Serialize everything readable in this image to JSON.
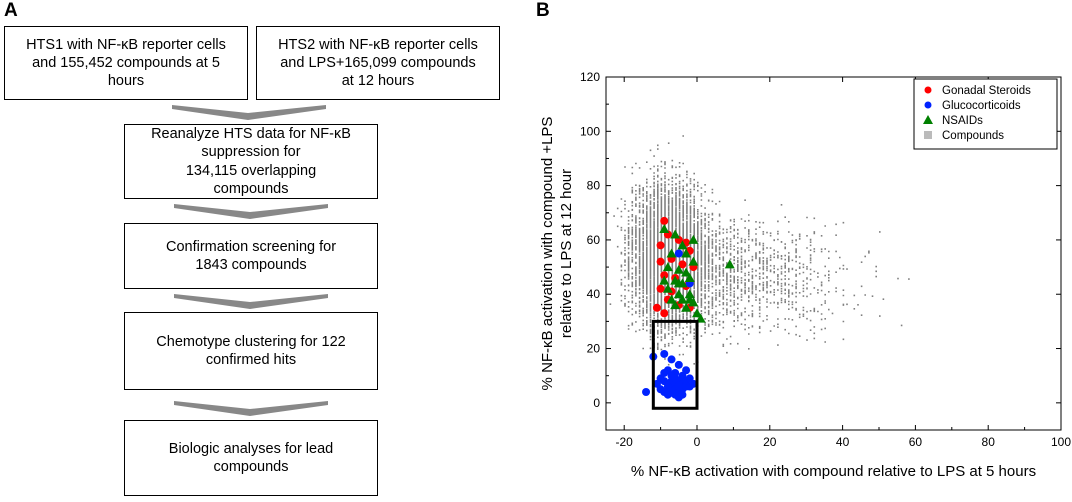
{
  "panel_a": {
    "label": "A",
    "boxes": [
      "HTS1 with NF-κB reporter cells\nand 155,452 compounds at 5\nhours",
      "HTS2 with NF-κB reporter cells\nand LPS+165,099 compounds\nat 12 hours",
      "Reanalyze HTS data for NF-κB\nsuppression for\n134,115  overlapping\ncompounds",
      "Confirmation screening for\n1843 compounds",
      "Chemotype clustering for 122\nconfirmed hits",
      "Biologic analyses for lead\ncompounds"
    ]
  },
  "panel_b": {
    "label": "B"
  },
  "colors": {
    "gonadal": "#ff0000",
    "gluco": "#0022ff",
    "nsaid": "#008000",
    "compounds": "#808080"
  },
  "chart_data": {
    "type": "scatter",
    "title": "",
    "xlabel": "% NF-κB activation with compound relative to LPS at 5 hours",
    "ylabel_lines": [
      "% NF-κB activation with compound +LPS",
      "relative to LPS at 12 hour"
    ],
    "xlim": [
      -25,
      100
    ],
    "ylim": [
      -10,
      120
    ],
    "xticks": [
      -20,
      0,
      20,
      40,
      60,
      80,
      100
    ],
    "yticks": [
      0,
      20,
      40,
      60,
      80,
      100,
      120
    ],
    "xtick_labels": [
      "-20",
      "0",
      "20",
      "40",
      "60",
      "80",
      "100"
    ],
    "ytick_labels": [
      "0",
      "20",
      "40",
      "60",
      "80",
      "100",
      "120"
    ],
    "legend_position": "top-right",
    "selection_box": {
      "x": [
        -12,
        0
      ],
      "y": [
        -2,
        30
      ]
    },
    "series": [
      {
        "name": "Gonadal Steroids",
        "marker": "circle",
        "points": [
          [
            -9,
            67
          ],
          [
            -8,
            62
          ],
          [
            -10,
            58
          ],
          [
            -5,
            60
          ],
          [
            -3,
            59
          ],
          [
            -2,
            56
          ],
          [
            -10,
            52
          ],
          [
            -7,
            53
          ],
          [
            -4,
            51
          ],
          [
            -1,
            50
          ],
          [
            -9,
            47
          ],
          [
            -6,
            46
          ],
          [
            -10,
            42
          ],
          [
            -3,
            43
          ],
          [
            -8,
            38
          ],
          [
            -5,
            36
          ],
          [
            -2,
            35
          ],
          [
            -9,
            33
          ],
          [
            -11,
            35
          ],
          [
            -7,
            41
          ]
        ]
      },
      {
        "name": "Glucocorticoids",
        "marker": "circle",
        "points": [
          [
            -12,
            17
          ],
          [
            -9,
            18
          ],
          [
            -7,
            16
          ],
          [
            -5,
            14
          ],
          [
            -8,
            12
          ],
          [
            -6,
            11
          ],
          [
            -4,
            10
          ],
          [
            -10,
            9
          ],
          [
            -9,
            8
          ],
          [
            -7,
            8
          ],
          [
            -6,
            7
          ],
          [
            -5,
            8
          ],
          [
            -4,
            7
          ],
          [
            -3,
            8
          ],
          [
            -2,
            9
          ],
          [
            -8,
            6
          ],
          [
            -7,
            5
          ],
          [
            -6,
            5
          ],
          [
            -5,
            4
          ],
          [
            -4,
            5
          ],
          [
            -3,
            6
          ],
          [
            -9,
            4
          ],
          [
            -11,
            7
          ],
          [
            -10,
            5
          ],
          [
            -6,
            3
          ],
          [
            -5,
            6
          ],
          [
            -4,
            3
          ],
          [
            -2,
            6
          ],
          [
            -7,
            10
          ],
          [
            -3,
            12
          ],
          [
            -8,
            3
          ],
          [
            -14,
            4
          ],
          [
            -1,
            7
          ],
          [
            -6,
            9
          ],
          [
            -9,
            11
          ],
          [
            -5,
            2
          ],
          [
            -2,
            44
          ],
          [
            -5,
            55
          ]
        ]
      },
      {
        "name": "NSAIDs",
        "marker": "triangle",
        "points": [
          [
            -9,
            64
          ],
          [
            -6,
            62
          ],
          [
            -4,
            58
          ],
          [
            -1,
            60
          ],
          [
            -3,
            55
          ],
          [
            -7,
            55
          ],
          [
            -8,
            50
          ],
          [
            -5,
            49
          ],
          [
            -3,
            48
          ],
          [
            -6,
            45
          ],
          [
            -4,
            44
          ],
          [
            -2,
            46
          ],
          [
            -8,
            42
          ],
          [
            -5,
            40
          ],
          [
            -7,
            38
          ],
          [
            -4,
            38
          ],
          [
            -2,
            40
          ],
          [
            -6,
            36
          ],
          [
            -3,
            35
          ],
          [
            -1,
            37
          ],
          [
            0,
            33
          ],
          [
            1,
            31
          ],
          [
            -9,
            45
          ],
          [
            -1,
            52
          ],
          [
            9,
            51
          ],
          [
            -5,
            44
          ],
          [
            -2,
            38
          ]
        ]
      },
      {
        "name": "Compounds",
        "marker": "square",
        "description_count": 134115
      }
    ]
  }
}
